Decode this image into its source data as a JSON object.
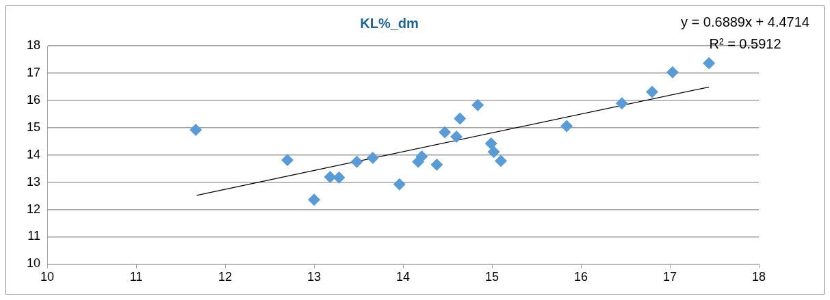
{
  "chart_data": {
    "type": "scatter",
    "title": "KL%_dm",
    "annotations": [
      "y = 0.6889x + 4.4714",
      "R² = 0.5912"
    ],
    "series": [
      {
        "type": "scatter",
        "color": "#5b9bd5",
        "marker": "diamond",
        "x": [
          11.67,
          12.7,
          13.0,
          13.18,
          13.28,
          13.48,
          13.66,
          13.96,
          14.17,
          14.21,
          14.38,
          14.47,
          14.6,
          14.64,
          14.84,
          14.99,
          15.02,
          15.1,
          15.84,
          16.46,
          16.8,
          17.03,
          17.44
        ],
        "values": [
          14.92,
          13.81,
          12.36,
          13.19,
          13.17,
          13.75,
          13.89,
          12.92,
          13.75,
          13.94,
          13.64,
          14.83,
          14.67,
          15.33,
          15.83,
          14.42,
          14.11,
          13.78,
          15.06,
          15.89,
          16.31,
          17.03,
          17.36
        ]
      },
      {
        "type": "line",
        "color": "#000000",
        "marker": "none",
        "x": [
          11.68,
          17.44
        ],
        "values": [
          12.52,
          16.49
        ]
      }
    ],
    "xlim": [
      10,
      18
    ],
    "xticks": [
      10,
      11,
      12,
      13,
      14,
      15,
      16,
      17,
      18
    ],
    "ylim": [
      10,
      18
    ],
    "yticks": [
      10,
      11,
      12,
      13,
      14,
      15,
      16,
      17,
      18
    ],
    "grid": "y"
  }
}
